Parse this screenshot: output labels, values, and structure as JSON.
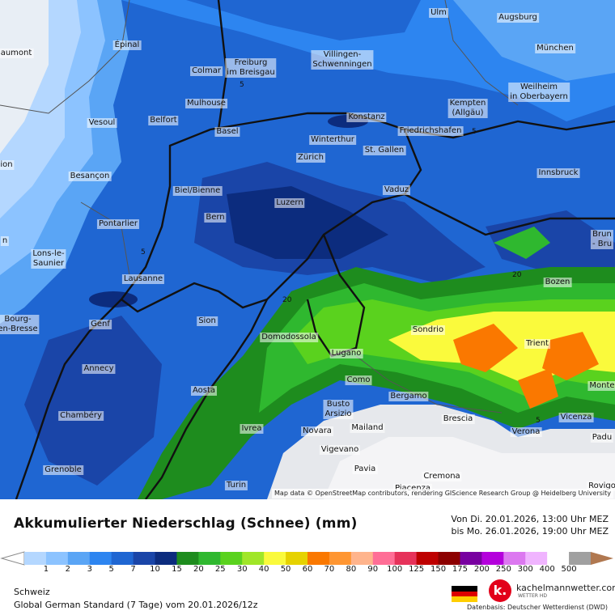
{
  "title": "Akkumulierter Niederschlag (Schnee) (mm)",
  "date_from": "Von Di. 20.01.2026, 13:00 Uhr MEZ",
  "date_to": "bis Mo. 26.01.2026, 19:00 Uhr MEZ",
  "region": "Schweiz",
  "model": "Global German Standard (7 Tage) vom 20.01.2026/12z",
  "attribution": "Map data © OpenStreetMap contributors, rendering GIScience Research Group @ Heidelberg University",
  "brand": "kachelmannwetter.com",
  "brand_sub": "WETTER HD",
  "datenbasis": "Datenbasis: Deutscher Wetterdienst (DWD)",
  "logo_letter": "k.",
  "legend": {
    "ticks": [
      "1",
      "2",
      "3",
      "5",
      "7",
      "10",
      "15",
      "20",
      "25",
      "30",
      "40",
      "50",
      "60",
      "70",
      "80",
      "90",
      "100",
      "125",
      "150",
      "175",
      "200",
      "250",
      "300",
      "400",
      "500"
    ],
    "colors": [
      "#b4d7ff",
      "#8cc3ff",
      "#5aa5f5",
      "#2d85f0",
      "#1f66d2",
      "#1a45a8",
      "#0c2c7e",
      "#1e8c1e",
      "#2fb82f",
      "#5ad21e",
      "#a0e628",
      "#fafa3c",
      "#e6d200",
      "#fa7800",
      "#ff9632",
      "#ffb48c",
      "#ff6e96",
      "#e6325a",
      "#be0000",
      "#8c0000",
      "#7800a0",
      "#b400dc",
      "#dc78f0",
      "#f0b4ff",
      "#ffffff",
      "#a0a0a0"
    ]
  },
  "cities": [
    {
      "name": "Ulm"
    },
    {
      "name": "Augsburg"
    },
    {
      "name": "Épinal"
    },
    {
      "name": "aumont"
    },
    {
      "name": "Freiburg\nim Breisgau"
    },
    {
      "name": "Villingen-\nSchwenningen"
    },
    {
      "name": "München"
    },
    {
      "name": "Colmar"
    },
    {
      "name": "Weilheim\nin Oberbayern"
    },
    {
      "name": "Kempten\n(Allgäu)"
    },
    {
      "name": "Mulhouse"
    },
    {
      "name": "Konstanz"
    },
    {
      "name": "Belfort"
    },
    {
      "name": "Vesoul"
    },
    {
      "name": "Basel"
    },
    {
      "name": "Friedrichshafen"
    },
    {
      "name": "Winterthur"
    },
    {
      "name": "St. Gallen"
    },
    {
      "name": "Zürich"
    },
    {
      "name": "Innsbruck"
    },
    {
      "name": "Besançon"
    },
    {
      "name": "Vaduz"
    },
    {
      "name": "Biel/Bienne"
    },
    {
      "name": "Luzern"
    },
    {
      "name": "Bern"
    },
    {
      "name": "Pontarlier"
    },
    {
      "name": "Brun\n- Bru"
    },
    {
      "name": "Lons-le-\nSaunier"
    },
    {
      "name": "Lausanne"
    },
    {
      "name": "Bozen"
    },
    {
      "name": "Bourg-\nen-Bresse"
    },
    {
      "name": "Sion"
    },
    {
      "name": "Genf"
    },
    {
      "name": "Sondrio"
    },
    {
      "name": "Domodossola"
    },
    {
      "name": "Trient"
    },
    {
      "name": "Annecy"
    },
    {
      "name": "Lugano"
    },
    {
      "name": "Monte"
    },
    {
      "name": "Como"
    },
    {
      "name": "Aosta"
    },
    {
      "name": "Bergamo"
    },
    {
      "name": "Busto\nArsizio"
    },
    {
      "name": "Chambéry"
    },
    {
      "name": "Vicenza"
    },
    {
      "name": "Brescia"
    },
    {
      "name": "Verona"
    },
    {
      "name": "Novara"
    },
    {
      "name": "Mailand"
    },
    {
      "name": "Ivrea"
    },
    {
      "name": "Padu"
    },
    {
      "name": "Vigevano"
    },
    {
      "name": "Grenoble"
    },
    {
      "name": "Pavia"
    },
    {
      "name": "Cremona"
    },
    {
      "name": "Turin"
    },
    {
      "name": "Rovigo"
    },
    {
      "name": "Piacenza"
    },
    {
      "name": "ion"
    },
    {
      "name": "n"
    }
  ],
  "contour_labels": [
    "5",
    "5",
    "5",
    "20",
    "20",
    "5"
  ]
}
